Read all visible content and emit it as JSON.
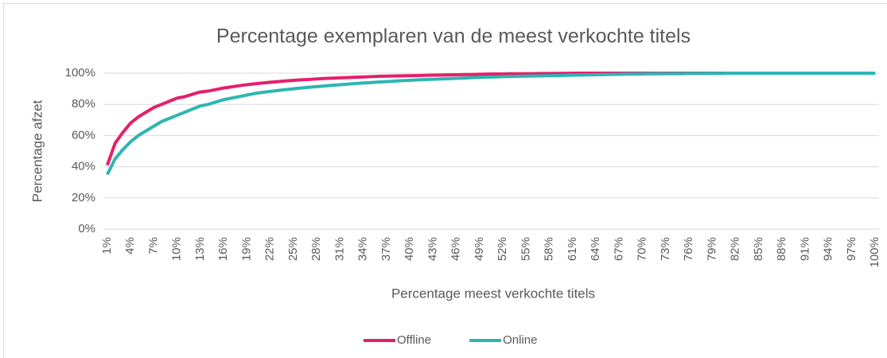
{
  "chart_data": {
    "type": "line",
    "title": "Percentage exemplaren van de meest verkochte titels",
    "y_label": "Percentage afzet",
    "x_label": "Percentage meest verkochte titels",
    "categories": [
      "1%",
      null,
      null,
      "4%",
      null,
      null,
      "7%",
      null,
      null,
      "10%",
      null,
      null,
      "13%",
      null,
      null,
      "16%",
      null,
      null,
      "19%",
      null,
      null,
      "22%",
      null,
      null,
      "25%",
      null,
      null,
      "28%",
      null,
      null,
      "31%",
      null,
      null,
      "34%",
      null,
      null,
      "37%",
      null,
      null,
      "40%",
      null,
      null,
      "43%",
      null,
      null,
      "46%",
      null,
      null,
      "49%",
      null,
      null,
      "52%",
      null,
      null,
      "55%",
      null,
      null,
      "58%",
      null,
      null,
      "61%",
      null,
      null,
      "64%",
      null,
      null,
      "67%",
      null,
      null,
      "70%",
      null,
      null,
      "73%",
      null,
      null,
      "76%",
      null,
      null,
      "79%",
      null,
      null,
      "82%",
      null,
      null,
      "85%",
      null,
      null,
      "88%",
      null,
      null,
      "91%",
      null,
      null,
      "94%",
      null,
      null,
      "97%",
      null,
      null,
      "100%"
    ],
    "series": [
      {
        "name": "Offline",
        "color": "#e3206b",
        "values": [
          41,
          55,
          62,
          68,
          72,
          75,
          78,
          80,
          82,
          84,
          85,
          86.5,
          88,
          88.5,
          89.5,
          90.5,
          91.2,
          92,
          92.6,
          93.2,
          93.7,
          94.2,
          94.6,
          95,
          95.4,
          95.7,
          96,
          96.3,
          96.6,
          96.8,
          97,
          97.2,
          97.4,
          97.6,
          97.8,
          98,
          98.1,
          98.2,
          98.3,
          98.4,
          98.5,
          98.6,
          98.7,
          98.8,
          98.9,
          99,
          99.1,
          99.2,
          99.3,
          99.4,
          99.5,
          99.5,
          99.6,
          99.6,
          99.7,
          99.7,
          99.8,
          99.8,
          99.9,
          99.9,
          100,
          100,
          100,
          100,
          100,
          100,
          100,
          100,
          100,
          100,
          100,
          100,
          100,
          100,
          100,
          100,
          100,
          100,
          100,
          100,
          100,
          100,
          100,
          100,
          100,
          100,
          100,
          100,
          100,
          100,
          100,
          100,
          100,
          100,
          100,
          100,
          100,
          100,
          100,
          100
        ]
      },
      {
        "name": "Online",
        "color": "#2db5b3",
        "values": [
          35,
          45,
          51,
          56,
          60,
          63,
          66,
          69,
          71,
          73,
          75,
          77,
          79,
          80,
          81.5,
          83,
          84,
          85,
          86,
          87,
          87.7,
          88.3,
          88.9,
          89.5,
          90,
          90.5,
          91,
          91.4,
          91.8,
          92.2,
          92.6,
          93,
          93.4,
          93.7,
          94,
          94.3,
          94.6,
          94.9,
          95.2,
          95.4,
          95.7,
          95.9,
          96.1,
          96.3,
          96.5,
          96.7,
          96.9,
          97.1,
          97.3,
          97.5,
          97.6,
          97.8,
          97.9,
          98,
          98.1,
          98.2,
          98.3,
          98.4,
          98.5,
          98.6,
          98.7,
          98.8,
          98.9,
          99,
          99.1,
          99.2,
          99.3,
          99.4,
          99.5,
          99.5,
          99.6,
          99.6,
          99.7,
          99.7,
          99.7,
          99.8,
          99.8,
          99.8,
          99.9,
          99.9,
          100,
          100,
          100,
          100,
          100,
          100,
          100,
          100,
          100,
          100,
          100,
          100,
          100,
          100,
          100,
          100,
          100,
          100,
          100,
          100
        ]
      }
    ],
    "ylim": [
      0,
      100
    ],
    "yticks": [
      {
        "value": 0,
        "label": "0%"
      },
      {
        "value": 20,
        "label": "20%"
      },
      {
        "value": 40,
        "label": "40%"
      },
      {
        "value": 60,
        "label": "60%"
      },
      {
        "value": 80,
        "label": "80%"
      },
      {
        "value": 100,
        "label": "100%"
      }
    ],
    "grid": true,
    "legend": "bottom"
  }
}
